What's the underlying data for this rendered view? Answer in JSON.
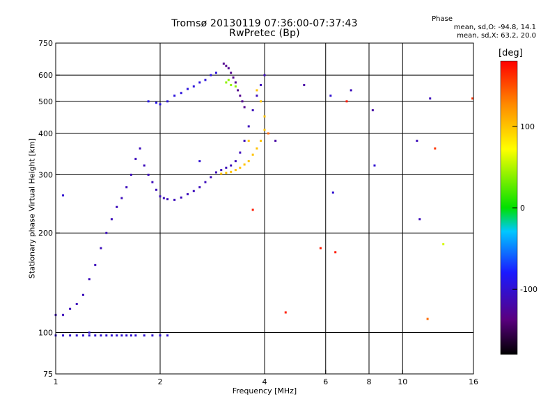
{
  "chart_data": {
    "type": "scatter",
    "title": "Tromsø 20130119 07:36:00-07:37:43",
    "subtitle": "RwPretec (Bp)",
    "xlabel": "Frequency [MHz]",
    "ylabel": "Stationary phase Virtual Height [km]",
    "x_scale": "log",
    "y_scale": "log",
    "xlim": [
      1,
      16
    ],
    "ylim": [
      75,
      750
    ],
    "x_ticks": [
      1,
      2,
      4,
      6,
      8,
      10,
      16
    ],
    "y_ticks": [
      75,
      100,
      200,
      300,
      400,
      500,
      600,
      750
    ],
    "grid_x": [
      2,
      4,
      6,
      8,
      10
    ],
    "grid_y": [
      100,
      200,
      300,
      400,
      500,
      600
    ],
    "phase_stats": {
      "heading": "Phase",
      "o_mode": "mean, sd,O: -94.8, 14.1",
      "x_mode": "mean, sd,X:  63.2, 20.0"
    },
    "colorbar": {
      "unit": "[deg]",
      "ticks": [
        -100,
        0,
        100
      ],
      "range": [
        -180,
        180
      ],
      "scale": "rainbow (black to red)"
    },
    "series": [
      {
        "x": [
          1.0,
          1.05,
          1.1,
          1.15,
          1.2,
          1.25,
          1.3,
          1.35,
          1.4,
          1.45,
          1.5,
          1.55,
          1.6,
          1.65,
          1.7,
          1.8,
          1.9,
          2.0,
          2.1,
          1.0,
          1.05,
          1.1,
          1.15,
          1.2,
          1.25,
          1.3,
          1.35,
          1.4,
          1.45,
          1.5,
          1.55,
          1.6,
          1.65,
          1.7,
          1.75,
          1.8,
          1.85,
          1.9,
          1.95,
          2.0,
          2.05,
          2.1,
          2.2,
          2.3,
          2.4,
          2.5,
          2.6,
          2.7,
          2.8,
          2.9,
          3.0,
          3.1,
          3.2,
          3.3,
          3.4,
          3.5,
          3.6,
          3.7,
          3.8,
          3.9,
          4.0
        ],
        "y": [
          98,
          98,
          98,
          98,
          98,
          98,
          98,
          98,
          98,
          98,
          98,
          98,
          98,
          98,
          98,
          98,
          98,
          98,
          98,
          113,
          113,
          118,
          122,
          130,
          145,
          160,
          180,
          200,
          220,
          240,
          255,
          275,
          300,
          335,
          360,
          320,
          300,
          285,
          270,
          258,
          255,
          253,
          252,
          256,
          262,
          268,
          275,
          285,
          295,
          305,
          310,
          315,
          320,
          330,
          350,
          380,
          420,
          470,
          520,
          560,
          600
        ],
        "c": [
          -100,
          -100,
          -100,
          -100,
          -100,
          -100,
          -100,
          -100,
          -100,
          -100,
          -100,
          -100,
          -100,
          -100,
          -100,
          -100,
          -100,
          -100,
          -100,
          -110,
          -110,
          -110,
          -110,
          -110,
          -110,
          -110,
          -110,
          -110,
          -110,
          -110,
          -110,
          -110,
          -110,
          -110,
          -110,
          -110,
          -110,
          -110,
          -110,
          -110,
          -110,
          -110,
          -110,
          -110,
          -110,
          -110,
          -110,
          -110,
          -110,
          -110,
          -110,
          -110,
          -110,
          -110,
          -110,
          -110,
          -110,
          -110,
          -110,
          -110,
          -110
        ]
      },
      {
        "x": [
          3.0,
          3.1,
          3.2,
          3.3,
          3.4,
          3.5,
          3.6,
          3.7,
          3.8,
          3.9,
          4.0,
          4.0,
          3.9,
          3.8,
          3.6,
          3.1,
          3.2,
          3.3,
          3.15
        ],
        "y": [
          302,
          304,
          306,
          310,
          315,
          322,
          330,
          345,
          360,
          380,
          410,
          450,
          500,
          540,
          380,
          570,
          560,
          555,
          580
        ],
        "c": [
          100,
          100,
          100,
          100,
          100,
          100,
          100,
          100,
          100,
          100,
          100,
          100,
          100,
          100,
          100,
          40,
          40,
          40,
          40
        ]
      },
      {
        "x": [
          1.85,
          1.95,
          2.0,
          2.1,
          2.2,
          2.3,
          2.4,
          2.5,
          2.6,
          2.7,
          2.8,
          2.9,
          3.05,
          3.1,
          3.15,
          3.2,
          3.25,
          3.3,
          3.35,
          3.4,
          3.45,
          3.5
        ],
        "y": [
          500,
          495,
          490,
          500,
          520,
          530,
          545,
          555,
          570,
          580,
          600,
          610,
          650,
          640,
          630,
          610,
          590,
          570,
          540,
          520,
          500,
          480
        ],
        "c": [
          -90,
          -90,
          -95,
          -95,
          -95,
          -95,
          -95,
          -95,
          -95,
          -95,
          -95,
          -95,
          -130,
          -130,
          -130,
          -130,
          -130,
          -130,
          -130,
          -130,
          -130,
          -130
        ]
      },
      {
        "x": [
          4.1,
          4.3,
          5.2,
          6.2,
          6.3,
          6.9,
          7.1,
          8.2,
          8.3,
          11.0,
          11.2,
          11.8,
          12.0,
          12.4,
          13.1,
          15.9,
          4.6,
          5.8,
          6.4,
          3.7,
          2.6,
          1.05,
          1.25
        ],
        "y": [
          400,
          380,
          560,
          520,
          265,
          500,
          540,
          470,
          320,
          380,
          220,
          110,
          510,
          360,
          185,
          510,
          115,
          180,
          175,
          235,
          330,
          260,
          100
        ],
        "c": [
          140,
          -120,
          -120,
          -100,
          -100,
          170,
          -110,
          -120,
          -100,
          -110,
          -110,
          140,
          -110,
          160,
          60,
          160,
          170,
          170,
          170,
          170,
          -100,
          -100,
          -100
        ]
      }
    ]
  }
}
